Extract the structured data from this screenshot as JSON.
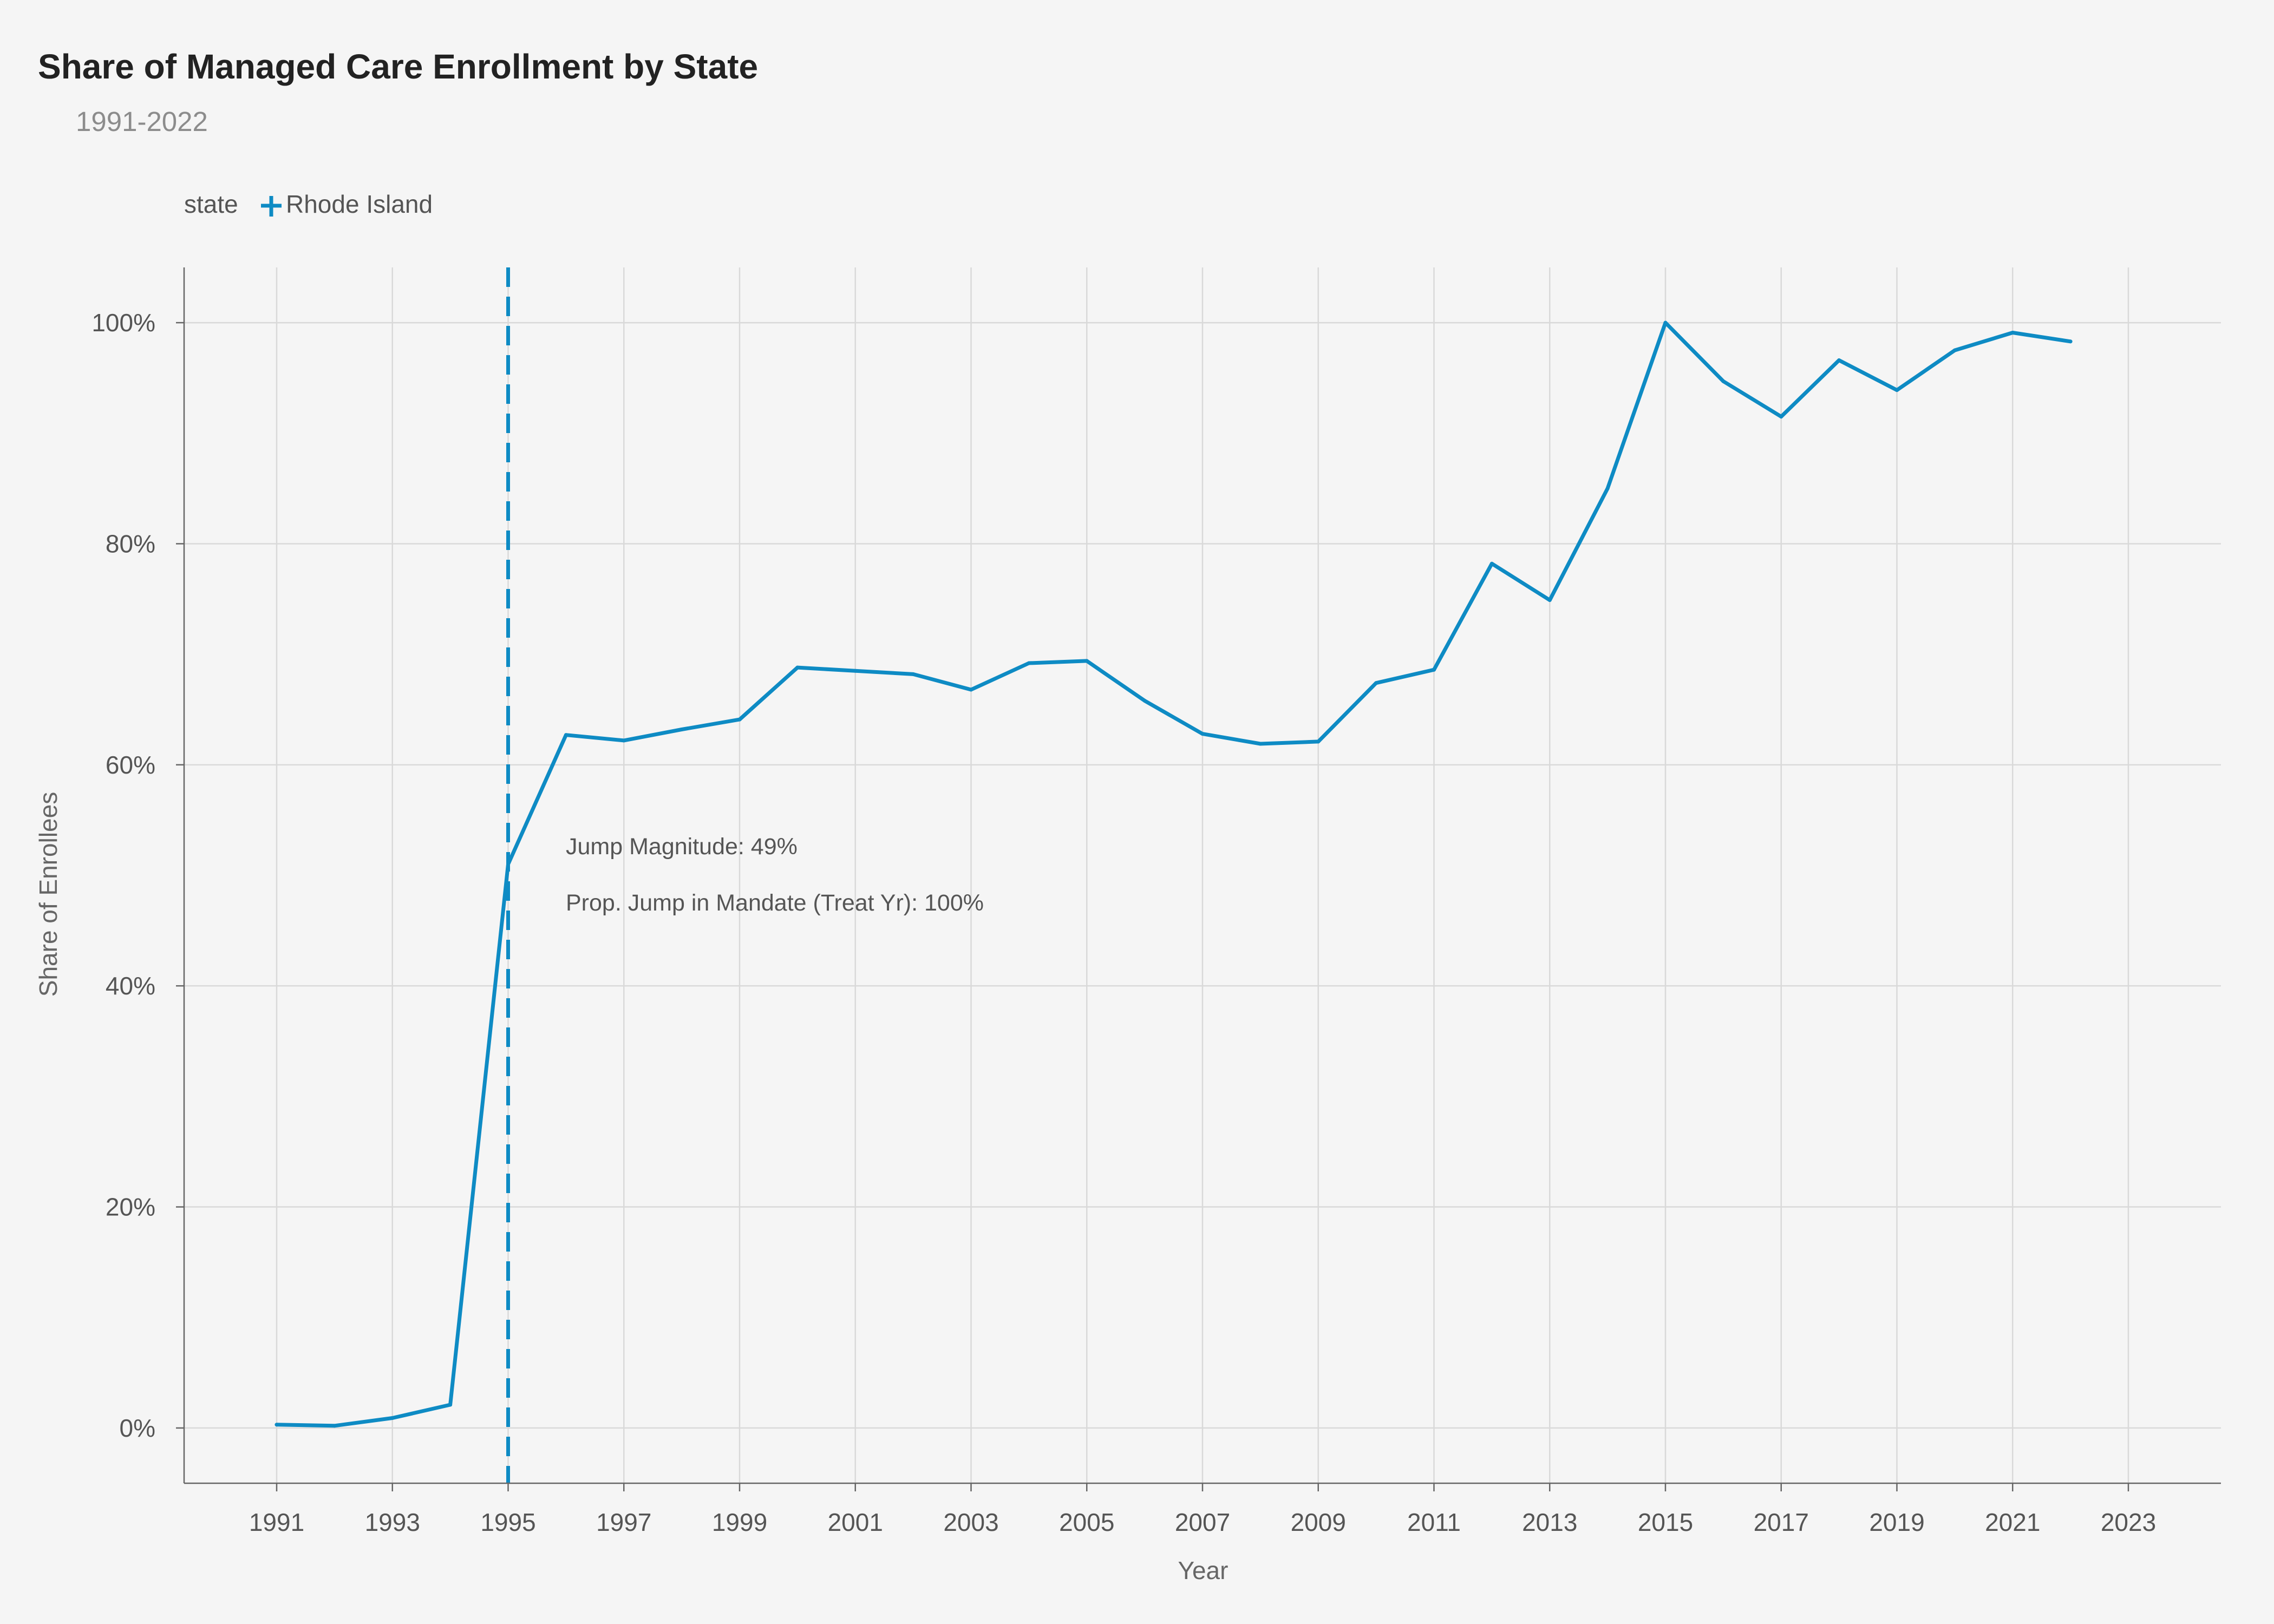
{
  "chart_data": {
    "type": "line",
    "title": "Share of Managed Care Enrollment by State",
    "subtitle": "1991-2022",
    "xlabel": "Year",
    "ylabel": "Share of Enrollees",
    "xlim": [
      1989.4,
      2024.6
    ],
    "ylim": [
      -5,
      105
    ],
    "x_ticks": [
      1991,
      1993,
      1995,
      1997,
      1999,
      2001,
      2003,
      2005,
      2007,
      2009,
      2011,
      2013,
      2015,
      2017,
      2019,
      2021,
      2023
    ],
    "y_ticks": [
      0,
      20,
      40,
      60,
      80,
      100
    ],
    "y_tick_labels": [
      "0%",
      "20%",
      "40%",
      "60%",
      "80%",
      "100%"
    ],
    "grid": true,
    "legend": {
      "title": "state",
      "placement": "top-left",
      "entries": [
        "Rhode Island"
      ]
    },
    "series": [
      {
        "name": "Rhode Island",
        "color": "#0e8bc4",
        "x": [
          1991,
          1992,
          1993,
          1994,
          1995,
          1996,
          1997,
          1998,
          1999,
          2000,
          2001,
          2002,
          2003,
          2004,
          2005,
          2006,
          2007,
          2008,
          2009,
          2010,
          2011,
          2012,
          2013,
          2014,
          2015,
          2016,
          2017,
          2018,
          2019,
          2020,
          2021,
          2022
        ],
        "y": [
          0.3,
          0.2,
          0.9,
          2.1,
          51.0,
          62.7,
          62.2,
          63.2,
          64.1,
          68.8,
          68.5,
          68.2,
          66.8,
          69.2,
          69.4,
          65.8,
          62.8,
          61.9,
          62.1,
          67.4,
          68.6,
          78.2,
          74.9,
          85.0,
          100.0,
          94.7,
          91.5,
          96.6,
          93.9,
          97.5,
          99.1,
          98.3
        ]
      }
    ],
    "reference_line": {
      "x": 1995,
      "style": "dashed",
      "color": "#0e8bc4"
    },
    "annotations": [
      "Jump Magnitude: 49%",
      "Prop. Jump in Mandate (Treat Yr): 100%"
    ]
  }
}
